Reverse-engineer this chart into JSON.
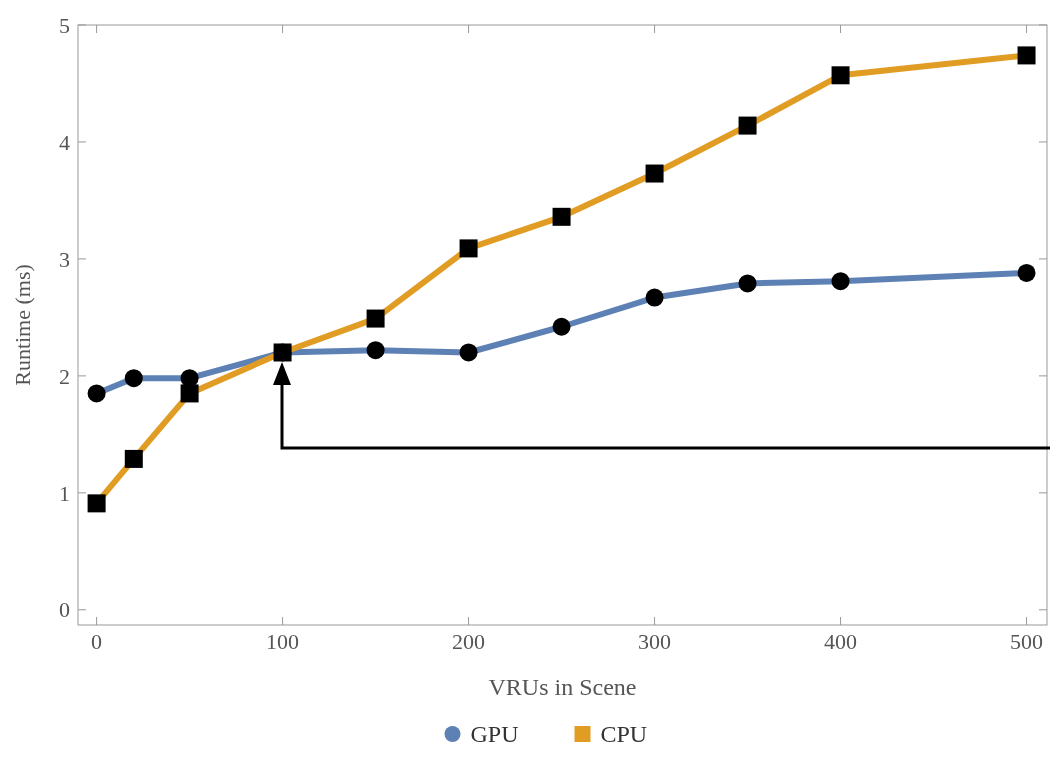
{
  "chart_data": {
    "type": "line",
    "xlabel": "VRUs in Scene",
    "ylabel": "Runtime (ms)",
    "x": [
      0,
      20,
      50,
      100,
      150,
      200,
      250,
      300,
      350,
      400,
      500
    ],
    "series": [
      {
        "name": "GPU",
        "color": "#5e81b5",
        "marker": "circle",
        "values": [
          1.85,
          1.98,
          1.98,
          2.2,
          2.22,
          2.2,
          2.42,
          2.67,
          2.79,
          2.81,
          2.88
        ]
      },
      {
        "name": "CPU",
        "color": "#e19c24",
        "marker": "square",
        "values": [
          0.91,
          1.29,
          1.85,
          2.2,
          2.49,
          3.09,
          3.36,
          3.73,
          4.14,
          4.57,
          4.74
        ]
      }
    ],
    "xlim": [
      -10,
      511
    ],
    "xticks": [
      0,
      100,
      200,
      300,
      400,
      500
    ],
    "ylim": [
      -0.13,
      5
    ],
    "yticks": [
      0,
      1,
      2,
      3,
      4,
      5
    ],
    "grid": false,
    "legend": "bottom",
    "line_style": "solid"
  }
}
